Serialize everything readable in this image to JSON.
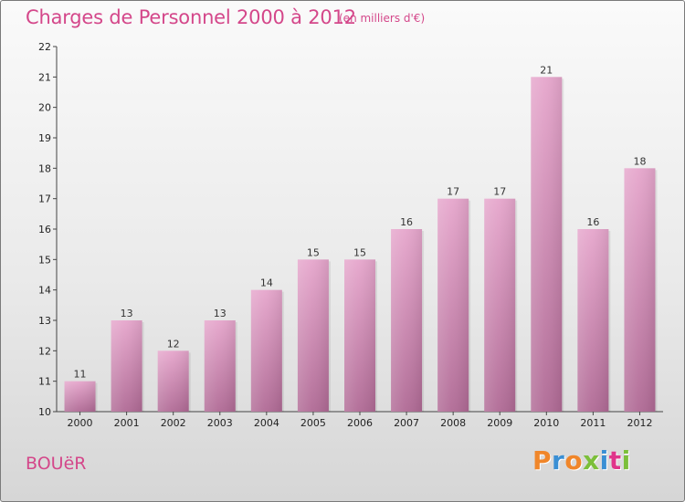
{
  "header": {
    "title": "Charges de Personnel 2000 à 2012",
    "subtitle": "(en milliers d'€)"
  },
  "footer": {
    "commune": "BOUëR",
    "logo": "Proxiti",
    "logo_colors": [
      "#f0862a",
      "#3a8fd4",
      "#f0862a",
      "#7cbf3a",
      "#3a8fd4",
      "#e0348a",
      "#7cbf3a"
    ]
  },
  "chart_data": {
    "type": "bar",
    "title": "Charges de Personnel 2000 à 2012",
    "subtitle": "(en milliers d'€)",
    "xlabel": "",
    "ylabel": "",
    "categories": [
      "2000",
      "2001",
      "2002",
      "2003",
      "2004",
      "2005",
      "2006",
      "2007",
      "2008",
      "2009",
      "2010",
      "2011",
      "2012"
    ],
    "values": [
      11,
      13,
      12,
      13,
      14,
      15,
      15,
      16,
      17,
      17,
      21,
      16,
      18
    ],
    "ylim": [
      10,
      22
    ],
    "yticks": [
      10,
      11,
      12,
      13,
      14,
      15,
      16,
      17,
      18,
      19,
      20,
      21,
      22
    ],
    "grid": false,
    "legend": "none",
    "bar_color_top": "#e6a6cc",
    "bar_color_bottom": "#b06a95",
    "text_color": "#d4478a"
  }
}
